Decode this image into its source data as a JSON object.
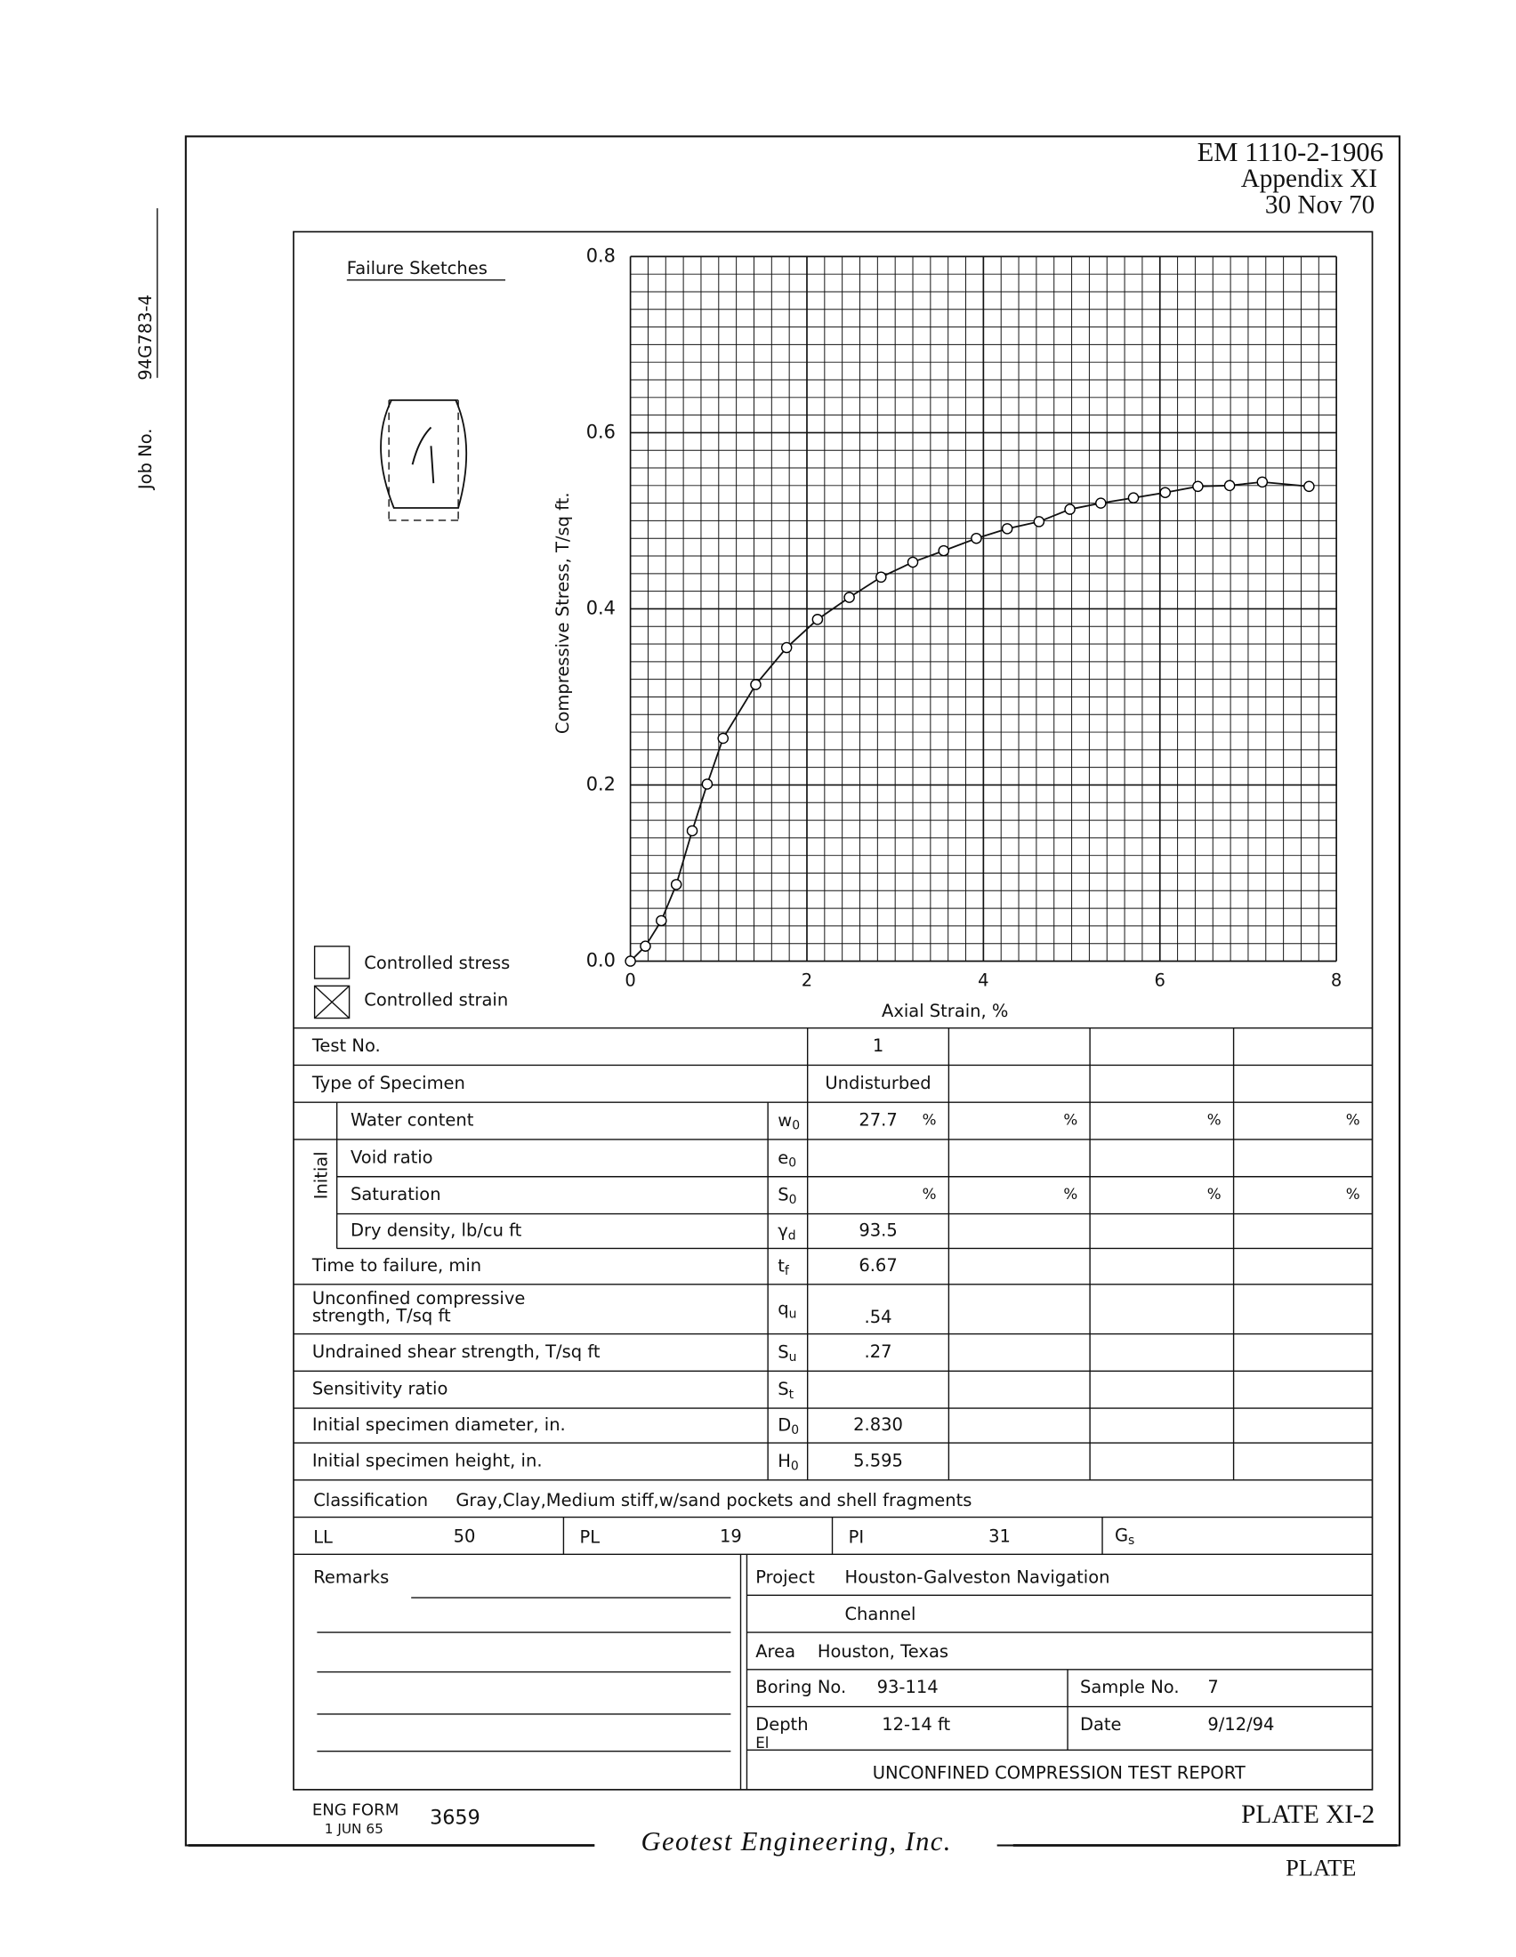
{
  "header": {
    "lines": [
      "EM 1110-2-1906",
      "Appendix XI",
      "30 Nov 70"
    ]
  },
  "job_no": {
    "label": "Job No.",
    "value": "94G783-4"
  },
  "failure_sketches": "Failure Sketches",
  "legend": [
    "Controlled stress",
    "Controlled strain"
  ],
  "chart_data": {
    "type": "line",
    "xlabel": "Axial Strain, %",
    "ylabel": "Compressive Stress, T/sq ft.",
    "x": [
      0,
      0.17,
      0.35,
      0.52,
      0.7,
      0.87,
      1.05,
      1.42,
      1.77,
      2.12,
      2.48,
      2.84,
      3.2,
      3.55,
      3.92,
      4.27,
      4.63,
      4.98,
      5.33,
      5.7,
      6.06,
      6.43,
      6.79,
      7.16,
      7.69
    ],
    "values": [
      0,
      0.017,
      0.046,
      0.087,
      0.148,
      0.201,
      0.253,
      0.314,
      0.356,
      0.388,
      0.413,
      0.436,
      0.453,
      0.466,
      0.48,
      0.491,
      0.499,
      0.513,
      0.52,
      0.526,
      0.532,
      0.539,
      0.54,
      0.544,
      0.539
    ],
    "color": "#000000",
    "xlim": [
      0,
      8
    ],
    "xticks": [
      0,
      2,
      4,
      6,
      8
    ],
    "ylim": [
      0,
      0.8
    ],
    "yticks": [
      {
        "value": 0,
        "label": "0.0"
      },
      0.2,
      0.4,
      0.6,
      0.8
    ],
    "grid": true,
    "markers": "circle"
  },
  "table": {
    "group_label": "Initial",
    "rows": [
      {
        "label": "Test No.",
        "value": "1"
      },
      {
        "label": "Type of Specimen",
        "value": "Undisturbed"
      },
      {
        "label": "Water content",
        "symbol": "w0",
        "value": "27.7",
        "unit": "%"
      },
      {
        "label": "Void ratio",
        "symbol": "e0"
      },
      {
        "label": "Saturation",
        "symbol": "S0",
        "unit": "%"
      },
      {
        "label": "Dry density, lb/cu ft",
        "symbol": "γd",
        "value": "93.5"
      },
      {
        "label": "Time to failure, min",
        "symbol": "tf",
        "value": "6.67"
      },
      {
        "label": [
          "Unconfined compressive",
          "strength, T/sq ft"
        ],
        "symbol": "qu",
        "value": ".54"
      },
      {
        "label": "Undrained shear strength, T/sq ft",
        "symbol": "Su",
        "value": ".27"
      },
      {
        "label": "Sensitivity ratio",
        "symbol": "St"
      },
      {
        "label": "Initial specimen diameter, in.",
        "symbol": "D0",
        "value": "2.830"
      },
      {
        "label": "Initial specimen height, in.",
        "symbol": "H0",
        "value": "5.595"
      }
    ]
  },
  "classification": {
    "label": "Classification",
    "value": "Gray,Clay,Medium stiff,w/sand pockets and shell fragments"
  },
  "limits": [
    {
      "label": "LL",
      "value": "50"
    },
    {
      "label": "PL",
      "value": "19"
    },
    {
      "label": "PI",
      "value": "31"
    },
    {
      "label": "Gs"
    }
  ],
  "remarks": "Remarks",
  "project": {
    "label": "Project",
    "lines": [
      "Houston-Galveston Navigation",
      "Channel"
    ]
  },
  "area": {
    "label": "Area",
    "value": "Houston, Texas"
  },
  "boring": {
    "label": "Boring No.",
    "value": "93-114"
  },
  "sample": {
    "label": "Sample No.",
    "value": "7"
  },
  "depth": {
    "label": "Depth",
    "sublabel": "El",
    "value": "12-14 ft"
  },
  "date": {
    "label": "Date",
    "value": "9/12/94"
  },
  "report_title": "UNCONFINED COMPRESSION TEST REPORT",
  "footer": {
    "form": "ENG FORM",
    "form_date": "1 JUN 65",
    "form_no": "3659",
    "plate": "PLATE XI-2",
    "company": "Geotest Engineering, Inc.",
    "page_label": "PLATE"
  }
}
